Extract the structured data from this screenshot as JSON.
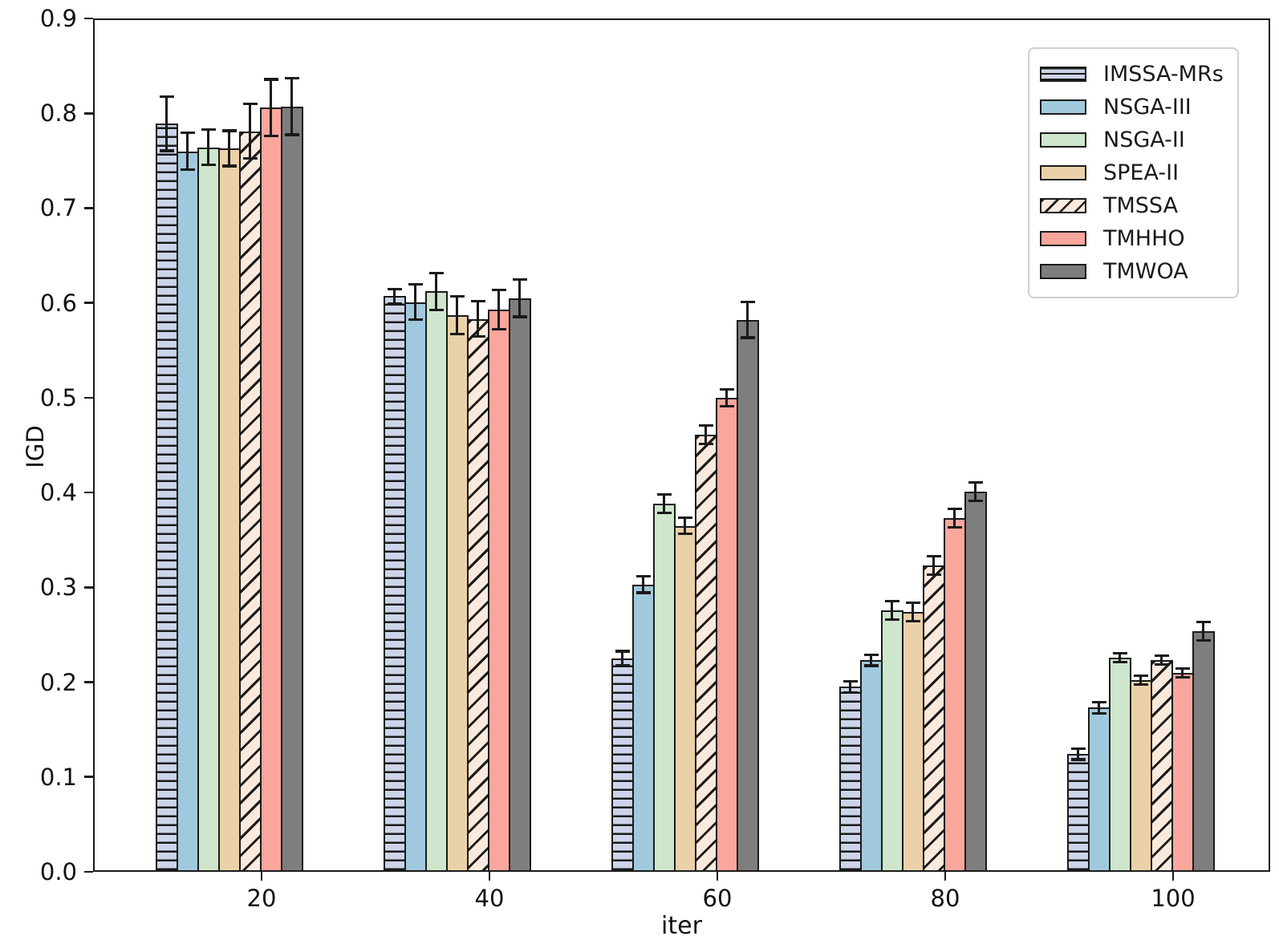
{
  "chart_data": {
    "type": "bar",
    "title": "",
    "xlabel": "iter",
    "ylabel": "IGD",
    "categories": [
      "20",
      "40",
      "60",
      "80",
      "100"
    ],
    "y_tick_labels": [
      "0.0",
      "0.1",
      "0.2",
      "0.3",
      "0.4",
      "0.5",
      "0.6",
      "0.7",
      "0.8",
      "0.9"
    ],
    "ylim": [
      0.0,
      0.9
    ],
    "grid": false,
    "legend_position": "upper right",
    "error_bars": true,
    "series": [
      {
        "name": "IMSSA-MRs",
        "color": "#ccd4e9",
        "hatch": "horizontal",
        "values": [
          0.789,
          0.607,
          0.225,
          0.195,
          0.124
        ],
        "errors": [
          0.03,
          0.009,
          0.009,
          0.007,
          0.007
        ]
      },
      {
        "name": "NSGA-III",
        "color": "#a1c9dd",
        "hatch": "none",
        "values": [
          0.76,
          0.601,
          0.303,
          0.223,
          0.173
        ],
        "errors": [
          0.021,
          0.02,
          0.01,
          0.007,
          0.007
        ]
      },
      {
        "name": "NSGA-II",
        "color": "#cee6cc",
        "hatch": "none",
        "values": [
          0.764,
          0.612,
          0.388,
          0.276,
          0.226
        ],
        "errors": [
          0.02,
          0.021,
          0.011,
          0.011,
          0.006
        ]
      },
      {
        "name": "SPEA-II",
        "color": "#ebd1a9",
        "hatch": "none",
        "values": [
          0.763,
          0.587,
          0.365,
          0.274,
          0.202
        ],
        "errors": [
          0.02,
          0.021,
          0.01,
          0.011,
          0.006
        ]
      },
      {
        "name": "TMSSA",
        "color": "#fbe9dc",
        "hatch": "diagonal",
        "values": [
          0.781,
          0.583,
          0.461,
          0.323,
          0.223
        ],
        "errors": [
          0.03,
          0.02,
          0.011,
          0.011,
          0.006
        ]
      },
      {
        "name": "TMHHO",
        "color": "#faa69c",
        "hatch": "none",
        "values": [
          0.806,
          0.593,
          0.5,
          0.373,
          0.21
        ],
        "errors": [
          0.031,
          0.022,
          0.01,
          0.011,
          0.006
        ]
      },
      {
        "name": "TMWOA",
        "color": "#7e7e7e",
        "hatch": "none",
        "values": [
          0.807,
          0.605,
          0.582,
          0.401,
          0.254
        ],
        "errors": [
          0.031,
          0.021,
          0.02,
          0.011,
          0.011
        ]
      }
    ]
  }
}
